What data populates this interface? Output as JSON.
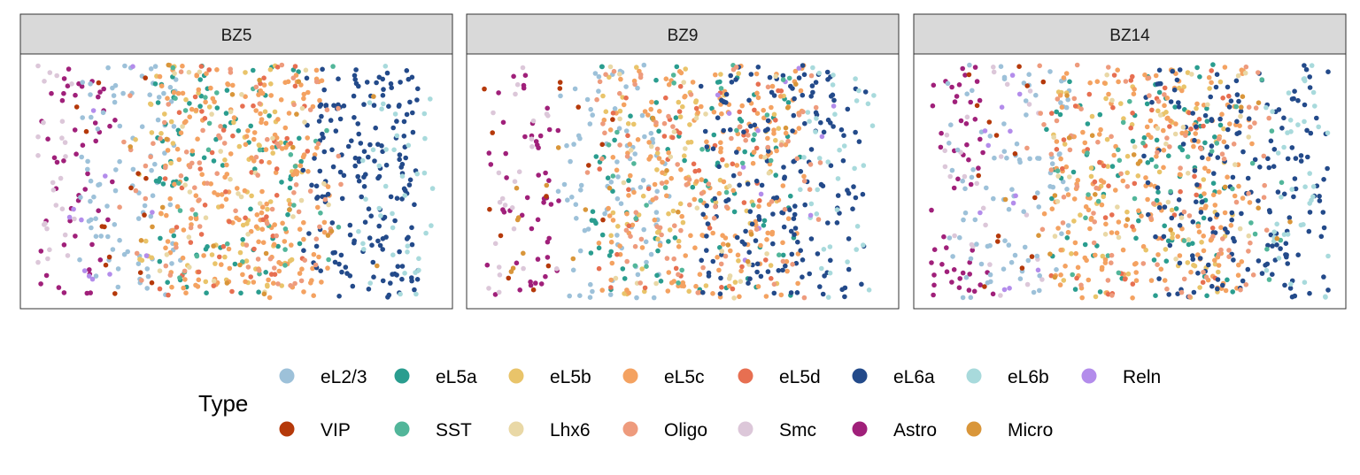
{
  "chart_data": {
    "type": "scatter",
    "facet_labels": [
      "BZ5",
      "BZ9",
      "BZ14"
    ],
    "legend": {
      "title": "Type",
      "entries": [
        {
          "label": "eL2/3",
          "color": "#9DC1D9"
        },
        {
          "label": "eL5a",
          "color": "#2A9D8F"
        },
        {
          "label": "eL5b",
          "color": "#E9C46A"
        },
        {
          "label": "eL5c",
          "color": "#F4A261"
        },
        {
          "label": "eL5d",
          "color": "#E76F51"
        },
        {
          "label": "eL6a",
          "color": "#234A8A"
        },
        {
          "label": "eL6b",
          "color": "#A8DADC"
        },
        {
          "label": "Reln",
          "color": "#B38CEB"
        },
        {
          "label": "VIP",
          "color": "#B5390A"
        },
        {
          "label": "SST",
          "color": "#52B69A"
        },
        {
          "label": "Lhx6",
          "color": "#E9D8A6"
        },
        {
          "label": "Oligo",
          "color": "#EE9B7D"
        },
        {
          "label": "Smc",
          "color": "#DCC7D9"
        },
        {
          "label": "Astro",
          "color": "#A0207A"
        },
        {
          "label": "Micro",
          "color": "#D9963A"
        }
      ]
    },
    "axes": {
      "x_visible": false,
      "y_visible": false,
      "grid": false
    },
    "legend_position": "bottom",
    "cell_distribution": {
      "description_key": "approx relative x-band (0 = left, 1 = right of panel) where each type concentrates",
      "panels": [
        {
          "facet": "BZ5",
          "cells_approx": 1000,
          "bands": {
            "Astro": [
              0.0,
              0.18
            ],
            "Smc": [
              0.0,
              0.08
            ],
            "eL2/3": [
              0.1,
              0.35
            ],
            "eL5a": [
              0.3,
              0.7
            ],
            "eL5b": [
              0.25,
              0.65
            ],
            "eL5c": [
              0.3,
              0.72
            ],
            "eL5d": [
              0.3,
              0.7
            ],
            "eL6a": [
              0.68,
              0.95
            ],
            "eL6b": [
              0.8,
              1.0
            ],
            "Reln": [
              0.05,
              0.3
            ],
            "VIP": [
              0.1,
              0.3
            ],
            "SST": [
              0.3,
              0.75
            ],
            "Lhx6": [
              0.3,
              0.75
            ],
            "Oligo": [
              0.2,
              0.8
            ],
            "Micro": [
              0.2,
              0.9
            ]
          }
        },
        {
          "facet": "BZ9",
          "cells_approx": 950,
          "bands": {
            "Astro": [
              0.0,
              0.18
            ],
            "Smc": [
              0.0,
              0.2
            ],
            "eL2/3": [
              0.2,
              0.45
            ],
            "eL5a": [
              0.25,
              0.8
            ],
            "eL5b": [
              0.3,
              0.75
            ],
            "eL5c": [
              0.3,
              0.8
            ],
            "eL5d": [
              0.3,
              0.75
            ],
            "eL6a": [
              0.55,
              0.95
            ],
            "eL6b": [
              0.8,
              1.0
            ],
            "Reln": [
              0.6,
              0.9
            ],
            "VIP": [
              0.0,
              0.4
            ],
            "SST": [
              0.3,
              0.8
            ],
            "Lhx6": [
              0.3,
              0.8
            ],
            "Oligo": [
              0.25,
              0.85
            ],
            "Micro": [
              0.0,
              0.8
            ]
          }
        },
        {
          "facet": "BZ14",
          "cells_approx": 1000,
          "bands": {
            "Astro": [
              0.0,
              0.15
            ],
            "Smc": [
              0.05,
              0.3
            ],
            "eL2/3": [
              0.05,
              0.35
            ],
            "eL5a": [
              0.3,
              0.75
            ],
            "eL5b": [
              0.3,
              0.75
            ],
            "eL5c": [
              0.3,
              0.8
            ],
            "eL5d": [
              0.3,
              0.75
            ],
            "eL6a": [
              0.55,
              1.0
            ],
            "eL6b": [
              0.85,
              1.0
            ],
            "Reln": [
              0.1,
              0.3
            ],
            "VIP": [
              0.1,
              0.3
            ],
            "SST": [
              0.3,
              0.9
            ],
            "Lhx6": [
              0.3,
              0.8
            ],
            "Oligo": [
              0.25,
              0.85
            ],
            "Micro": [
              0.2,
              0.9
            ]
          }
        }
      ]
    }
  }
}
